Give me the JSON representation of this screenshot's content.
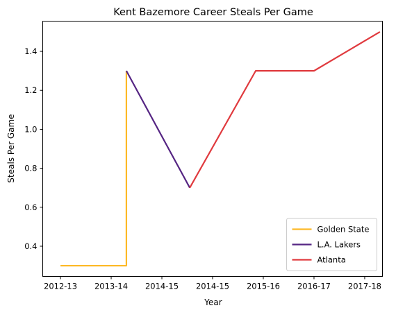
{
  "chart_data": {
    "type": "line",
    "title": "Kent Bazemore Career Steals Per Game",
    "xlabel": "Year",
    "ylabel": "Steals Per Game",
    "x_ticks": [
      {
        "pos": 0,
        "label": "2012-13"
      },
      {
        "pos": 1,
        "label": "2013-14"
      },
      {
        "pos": 2,
        "label": "2014-15"
      },
      {
        "pos": 3,
        "label": "2014-15"
      },
      {
        "pos": 4,
        "label": "2015-16"
      },
      {
        "pos": 5,
        "label": "2016-17"
      },
      {
        "pos": 6,
        "label": "2017-18"
      }
    ],
    "xlim": [
      -0.35,
      6.35
    ],
    "ylim": [
      0.245,
      1.555
    ],
    "y_ticks": [
      0.4,
      0.6,
      0.8,
      1.0,
      1.2,
      1.4
    ],
    "series": [
      {
        "name": "Golden State",
        "color": "#FDB927",
        "points": [
          {
            "x": 0,
            "y": 0.3
          },
          {
            "x": 1.3,
            "y": 0.3
          },
          {
            "x": 1.3,
            "y": 1.3
          }
        ]
      },
      {
        "name": "L.A. Lakers",
        "color": "#552583",
        "points": [
          {
            "x": 1.3,
            "y": 1.3
          },
          {
            "x": 2.55,
            "y": 0.7
          }
        ]
      },
      {
        "name": "Atlanta",
        "color": "#E03A3E",
        "points": [
          {
            "x": 2.55,
            "y": 0.7
          },
          {
            "x": 3.85,
            "y": 1.3
          },
          {
            "x": 5,
            "y": 1.3
          },
          {
            "x": 6.3,
            "y": 1.5
          }
        ]
      }
    ],
    "legend_position": "bottom-right",
    "grid": false
  }
}
